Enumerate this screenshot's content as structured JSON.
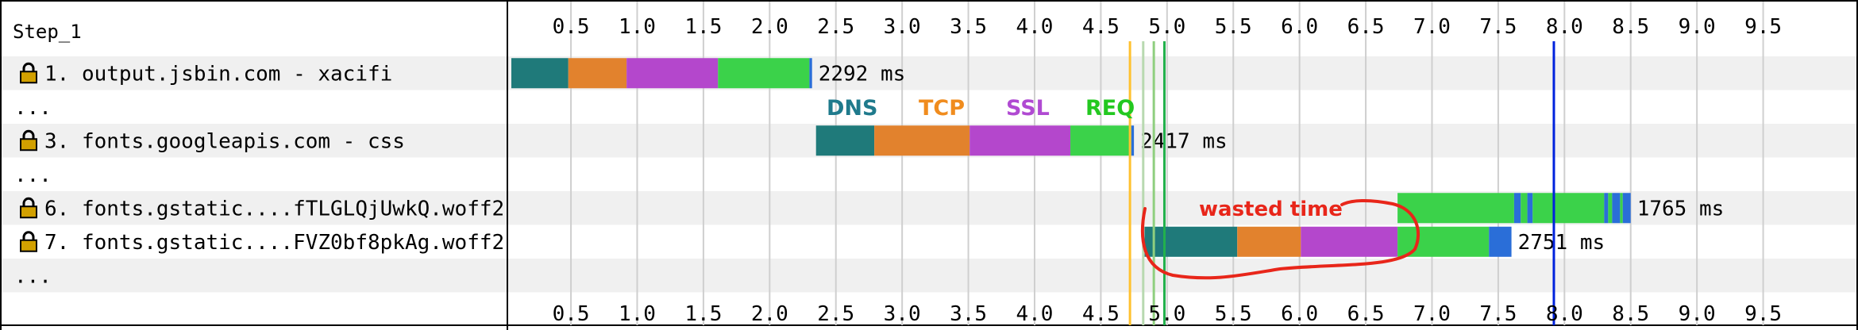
{
  "chart_data": {
    "type": "waterfall",
    "step_label": "Step_1",
    "x_unit": "seconds",
    "ticks": [
      0.5,
      1.0,
      1.5,
      2.0,
      2.5,
      3.0,
      3.5,
      4.0,
      4.5,
      5.0,
      5.5,
      6.0,
      6.5,
      7.0,
      7.5,
      8.0,
      8.5,
      9.0,
      9.5
    ],
    "tick_labels": [
      "0.5",
      "1.0",
      "1.5",
      "2.0",
      "2.5",
      "3.0",
      "3.5",
      "4.0",
      "4.5",
      "5.0",
      "5.5",
      "6.0",
      "6.5",
      "7.0",
      "7.5",
      "8.0",
      "8.5",
      "9.0",
      "9.5"
    ],
    "xlim": [
      0.05,
      10.18
    ],
    "rows": [
      {
        "label": "1. output.jsbin.com - xacifi",
        "secure": true,
        "segments": [
          {
            "phase": "dns",
            "start": 0.05,
            "end": 0.48
          },
          {
            "phase": "tcp",
            "start": 0.48,
            "end": 0.92
          },
          {
            "phase": "ssl",
            "start": 0.92,
            "end": 1.61
          },
          {
            "phase": "req",
            "start": 1.61,
            "end": 2.3
          },
          {
            "phase": "download",
            "start": 2.3,
            "end": 2.32
          }
        ],
        "duration_label": "2292 ms"
      },
      {
        "label": "...",
        "secure": false,
        "segments": [],
        "duration_label": ""
      },
      {
        "label": "3. fonts.googleapis.com - css",
        "secure": true,
        "segments": [
          {
            "phase": "dns",
            "start": 2.35,
            "end": 2.79
          },
          {
            "phase": "tcp",
            "start": 2.79,
            "end": 3.51
          },
          {
            "phase": "ssl",
            "start": 3.51,
            "end": 4.27
          },
          {
            "phase": "req",
            "start": 4.27,
            "end": 4.73
          },
          {
            "phase": "download",
            "start": 4.73,
            "end": 4.75
          }
        ],
        "duration_label": "2417 ms"
      },
      {
        "label": "...",
        "secure": false,
        "segments": [],
        "duration_label": ""
      },
      {
        "label": "6. fonts.gstatic....fTLGLQjUwkQ.woff2",
        "secure": true,
        "segments": [
          {
            "phase": "req",
            "start": 6.74,
            "end": 7.62
          },
          {
            "phase": "download",
            "start": 7.62,
            "end": 7.67
          },
          {
            "phase": "req",
            "start": 7.67,
            "end": 7.72
          },
          {
            "phase": "download",
            "start": 7.72,
            "end": 7.76
          },
          {
            "phase": "req",
            "start": 7.76,
            "end": 8.3
          },
          {
            "phase": "download",
            "start": 8.3,
            "end": 8.33
          },
          {
            "phase": "req",
            "start": 8.33,
            "end": 8.36
          },
          {
            "phase": "download",
            "start": 8.36,
            "end": 8.42
          },
          {
            "phase": "req",
            "start": 8.42,
            "end": 8.44
          },
          {
            "phase": "download",
            "start": 8.44,
            "end": 8.5
          }
        ],
        "duration_label": "1765 ms"
      },
      {
        "label": "7. fonts.gstatic....FVZ0bf8pkAg.woff2",
        "secure": true,
        "segments": [
          {
            "phase": "dns",
            "start": 4.83,
            "end": 5.53
          },
          {
            "phase": "tcp",
            "start": 5.53,
            "end": 6.01
          },
          {
            "phase": "ssl",
            "start": 6.01,
            "end": 6.74
          },
          {
            "phase": "req",
            "start": 6.74,
            "end": 7.43
          },
          {
            "phase": "download",
            "start": 7.43,
            "end": 7.6
          }
        ],
        "duration_label": "2751 ms"
      },
      {
        "label": "...",
        "secure": false,
        "segments": [],
        "duration_label": ""
      }
    ],
    "markers": [
      {
        "time": 4.72,
        "color": "#ffc12f",
        "width": 3
      },
      {
        "time": 4.82,
        "color": "#b8d9b0",
        "width": 3
      },
      {
        "time": 4.9,
        "color": "#8fcf7f",
        "width": 3
      },
      {
        "time": 4.98,
        "color": "#22b14c",
        "width": 3
      },
      {
        "time": 7.92,
        "color": "#0022dd",
        "width": 3
      }
    ],
    "legend": [
      {
        "label": "DNS",
        "color": "#1f7a8c"
      },
      {
        "label": "TCP",
        "color": "#f08c1e"
      },
      {
        "label": "SSL",
        "color": "#b04ad2"
      },
      {
        "label": "REQ",
        "color": "#23c820"
      }
    ],
    "annotation": {
      "text": "wasted time",
      "color": "#e8261a"
    }
  },
  "colors": {
    "dns": "#1f7a7a",
    "tcp": "#e2822d",
    "ssl": "#b447cc",
    "req": "#3bd24a",
    "download": "#2a6ed8",
    "row_alt": "#f0f0f0",
    "grid": "#cfcfcf",
    "lock": "#d2a000"
  }
}
